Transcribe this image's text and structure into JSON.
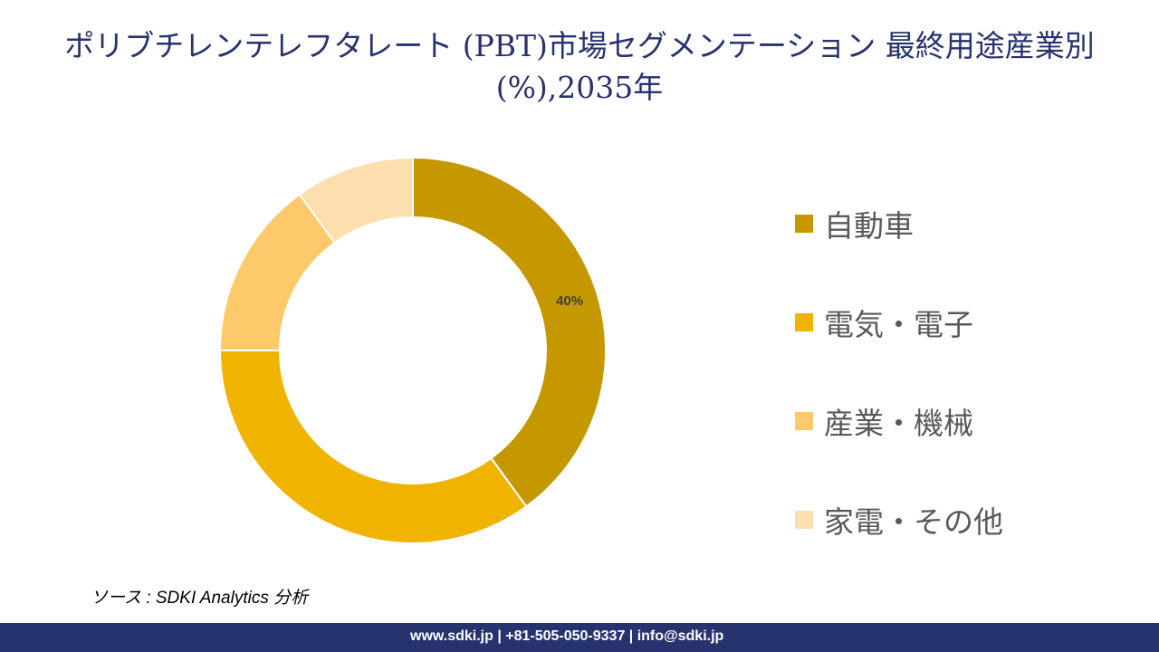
{
  "title": "ポリブチレンテレフタレート (PBT)市場セグメンテーション 最終用途産業別(%),2035年",
  "chart_data": {
    "type": "pie",
    "donut": true,
    "title": "ポリブチレンテレフタレート (PBT)市場セグメンテーション 最終用途産業別(%),2035年",
    "categories": [
      "自動車",
      "電気・電子",
      "産業・機械",
      "家電・その他"
    ],
    "values": [
      40,
      35,
      15,
      10
    ],
    "data_labels": [
      "40%",
      "",
      "",
      ""
    ],
    "colors": [
      "#C59800",
      "#EFB300",
      "#FDC96A",
      "#FDDEAE"
    ],
    "legend_position": "right"
  },
  "source": "ソース : SDKI Analytics 分析",
  "footer": "www.sdki.jp | +81-505-050-9337 | info@sdki.jp"
}
